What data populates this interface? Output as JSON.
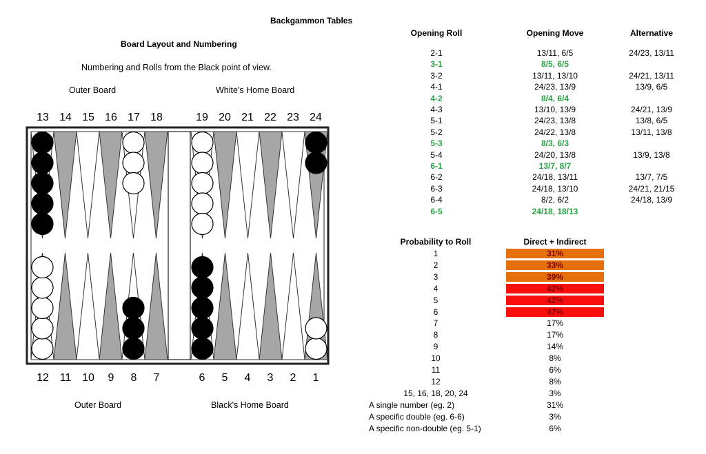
{
  "title": "Backgammon Tables",
  "board": {
    "heading": "Board Layout and Numbering",
    "subheading": "Numbering and Rolls from the Black point of view.",
    "top_left_label": "Outer Board",
    "top_right_label": "White's Home Board",
    "bottom_left_label": "Outer Board",
    "bottom_right_label": "Black's Home Board",
    "top_numbers": [
      "13",
      "14",
      "15",
      "16",
      "17",
      "18",
      "19",
      "20",
      "21",
      "22",
      "23",
      "24"
    ],
    "bottom_numbers": [
      "12",
      "11",
      "10",
      "9",
      "8",
      "7",
      "6",
      "5",
      "4",
      "3",
      "2",
      "1"
    ],
    "colors": {
      "dark_triangle": "#a6a6a6",
      "light_triangle": "#ffffff",
      "black_checker": "#000000",
      "white_checker": "#ffffff",
      "frame": "#222222"
    },
    "checkers": [
      {
        "point": 13,
        "color": "black",
        "count": 5
      },
      {
        "point": 17,
        "color": "white",
        "count": 3
      },
      {
        "point": 19,
        "color": "white",
        "count": 5
      },
      {
        "point": 24,
        "color": "black",
        "count": 2
      },
      {
        "point": 12,
        "color": "white",
        "count": 5
      },
      {
        "point": 8,
        "color": "black",
        "count": 3
      },
      {
        "point": 6,
        "color": "black",
        "count": 5
      },
      {
        "point": 1,
        "color": "white",
        "count": 2
      }
    ]
  },
  "opening": {
    "headers": [
      "Opening Roll",
      "Opening Move",
      "Alternative"
    ],
    "highlight_color": "#2aa347",
    "rows": [
      {
        "roll": "2-1",
        "move": "13/11, 6/5",
        "alt": "24/23, 13/11",
        "hl": false
      },
      {
        "roll": "3-1",
        "move": "8/5, 6/5",
        "alt": "",
        "hl": true
      },
      {
        "roll": "3-2",
        "move": "13/11, 13/10",
        "alt": "24/21, 13/11",
        "hl": false
      },
      {
        "roll": "4-1",
        "move": "24/23, 13/9",
        "alt": "13/9, 6/5",
        "hl": false
      },
      {
        "roll": "4-2",
        "move": "8/4, 6/4",
        "alt": "",
        "hl": true
      },
      {
        "roll": "4-3",
        "move": "13/10, 13/9",
        "alt": "24/21, 13/9",
        "hl": false
      },
      {
        "roll": "5-1",
        "move": "24/23, 13/8",
        "alt": "13/8, 6/5",
        "hl": false
      },
      {
        "roll": "5-2",
        "move": "24/22, 13/8",
        "alt": "13/11, 13/8",
        "hl": false
      },
      {
        "roll": "5-3",
        "move": "8/3, 6/3",
        "alt": "",
        "hl": true
      },
      {
        "roll": "5-4",
        "move": "24/20, 13/8",
        "alt": "13/9, 13/8",
        "hl": false
      },
      {
        "roll": "6-1",
        "move": "13/7, 8/7",
        "alt": "",
        "hl": true
      },
      {
        "roll": "6-2",
        "move": "24/18, 13/11",
        "alt": "13/7, 7/5",
        "hl": false
      },
      {
        "roll": "6-3",
        "move": "24/18, 13/10",
        "alt": "24/21, 21/15",
        "hl": false
      },
      {
        "roll": "6-4",
        "move": "8/2, 6/2",
        "alt": "24/18, 13/9",
        "hl": false
      },
      {
        "roll": "6-5",
        "move": "24/18, 18/13",
        "alt": "",
        "hl": true
      }
    ]
  },
  "probability": {
    "headers": [
      "Probability to Roll",
      "Direct + Indirect"
    ],
    "colors": {
      "orange": "#e5700b",
      "red": "#fa0f0f",
      "dark_text": "#7a0000"
    },
    "rows": [
      {
        "label": "1",
        "value": "31%",
        "shade": "orange"
      },
      {
        "label": "2",
        "value": "33%",
        "shade": "orange"
      },
      {
        "label": "3",
        "value": "39%",
        "shade": "orange"
      },
      {
        "label": "4",
        "value": "42%",
        "shade": "red"
      },
      {
        "label": "5",
        "value": "42%",
        "shade": "red"
      },
      {
        "label": "6",
        "value": "47%",
        "shade": "red"
      },
      {
        "label": "7",
        "value": "17%",
        "shade": ""
      },
      {
        "label": "8",
        "value": "17%",
        "shade": ""
      },
      {
        "label": "9",
        "value": "14%",
        "shade": ""
      },
      {
        "label": "10",
        "value": "8%",
        "shade": ""
      },
      {
        "label": "11",
        "value": "6%",
        "shade": ""
      },
      {
        "label": "12",
        "value": "8%",
        "shade": ""
      },
      {
        "label": "15, 16, 18, 20, 24",
        "value": "3%",
        "shade": ""
      },
      {
        "label": "A single number (eg. 2)",
        "value": "31%",
        "shade": "",
        "left": true
      },
      {
        "label": "A specific double (eg. 6-6)",
        "value": "3%",
        "shade": "",
        "left": true
      },
      {
        "label": "A specific non-double (eg. 5-1)",
        "value": "6%",
        "shade": "",
        "left": true
      }
    ]
  }
}
